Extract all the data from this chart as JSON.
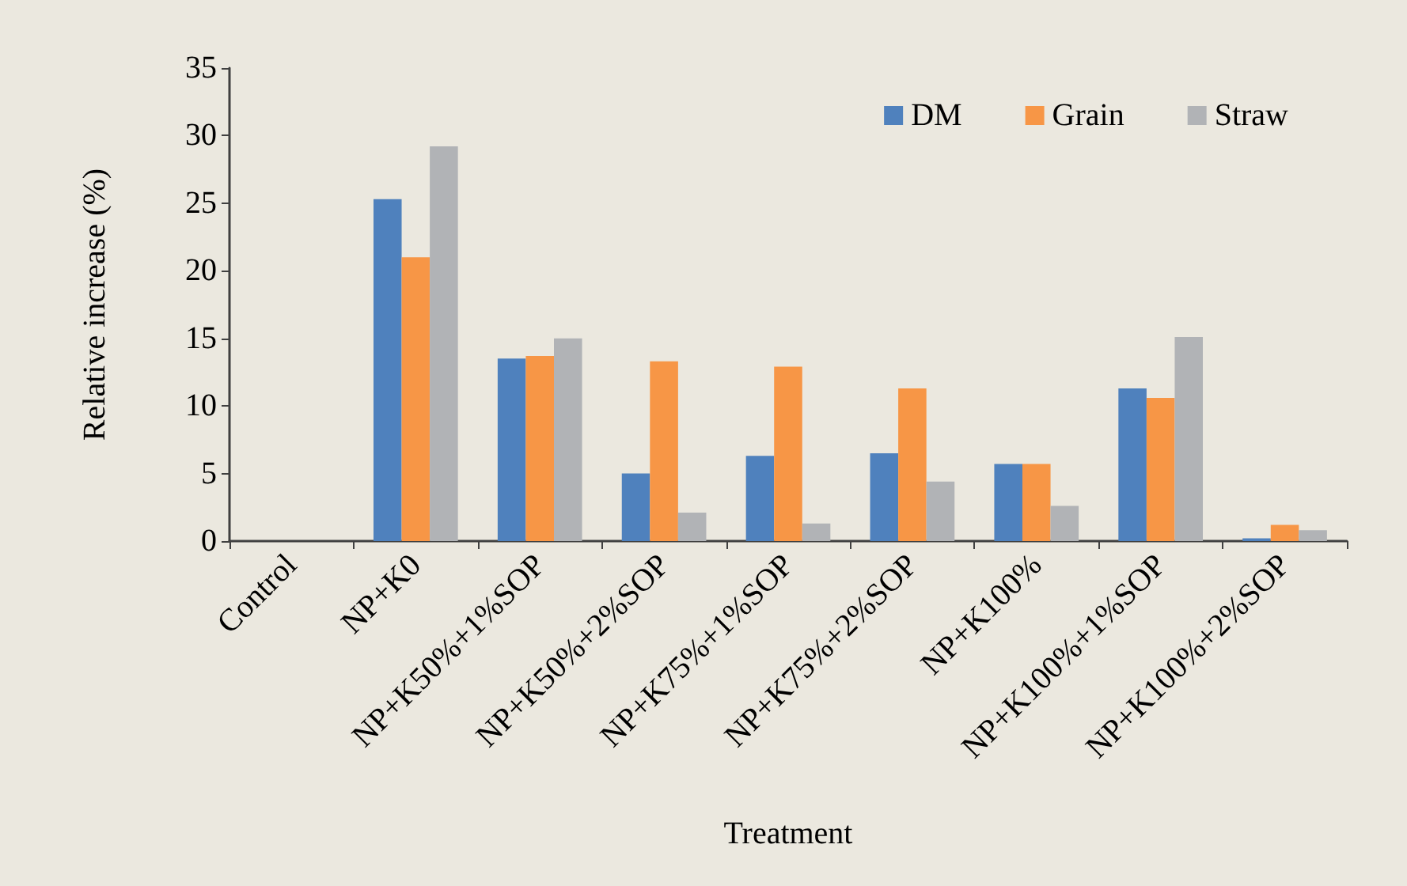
{
  "chart_data": {
    "type": "bar",
    "xlabel": "Treatment",
    "ylabel": "Relative increase (%)",
    "categories": [
      "Control",
      "NP+K0",
      "NP+K50%+1%SOP",
      "NP+K50%+2%SOP",
      "NP+K75%+1%SOP",
      "NP+K75%+2%SOP",
      "NP+K100%",
      "NP+K100%+1%SOP",
      "NP+K100%+2%SOP"
    ],
    "series": [
      {
        "name": "DM",
        "color": "#4f81bd",
        "values": [
          0,
          25.3,
          13.5,
          5.0,
          6.3,
          6.5,
          5.7,
          11.3,
          0.2
        ]
      },
      {
        "name": "Grain",
        "color": "#f79646",
        "values": [
          0,
          21.0,
          13.7,
          13.3,
          12.9,
          11.3,
          5.7,
          10.6,
          1.2
        ]
      },
      {
        "name": "Straw",
        "color": "#b1b3b6",
        "values": [
          0,
          29.2,
          15.0,
          2.1,
          1.3,
          4.4,
          2.6,
          15.1,
          0.8
        ]
      }
    ],
    "ylim": [
      0,
      35
    ],
    "yticks": [
      0,
      5,
      10,
      15,
      20,
      25,
      30,
      35
    ],
    "grid": false,
    "legend": "top right"
  }
}
